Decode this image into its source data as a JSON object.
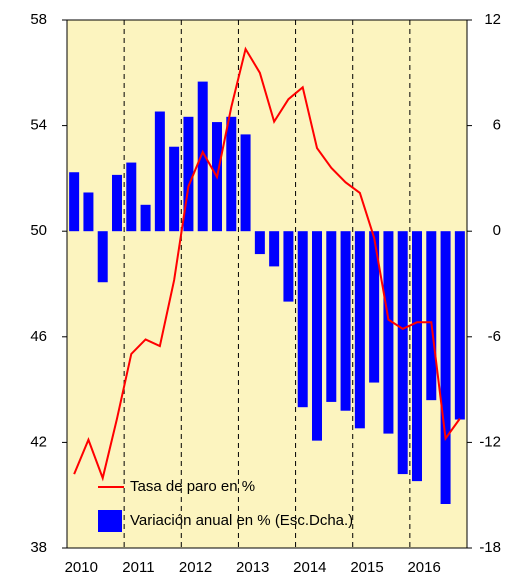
{
  "chart_data": {
    "type": "bar",
    "categories": [
      null,
      "2010",
      null,
      null,
      null,
      "2011",
      null,
      null,
      null,
      "2012",
      null,
      null,
      null,
      "2013",
      null,
      null,
      null,
      "2014",
      null,
      null,
      null,
      "2015",
      null,
      null,
      null,
      "2016",
      null,
      null
    ],
    "series": [
      {
        "name": "Tasa de paro en %",
        "type": "line",
        "color": "#ff0000",
        "values": [
          40.8,
          42.1,
          40.65,
          42.9,
          45.35,
          45.9,
          45.65,
          48.15,
          51.7,
          53.0,
          52.05,
          54.7,
          56.9,
          56.0,
          54.15,
          55.0,
          55.45,
          53.15,
          52.4,
          51.85,
          51.45,
          49.75,
          46.65,
          46.3,
          46.55,
          46.55,
          42.15,
          42.9
        ]
      },
      {
        "name": "Variación anual en % (Esc.Dcha.)",
        "type": "bar",
        "axis": "y2",
        "color": "#0000ff",
        "values": [
          3.35,
          2.2,
          -2.9,
          3.2,
          3.9,
          1.5,
          6.8,
          4.8,
          6.5,
          8.5,
          6.2,
          6.5,
          5.5,
          -1.3,
          -2.0,
          -4.0,
          -10.0,
          -11.9,
          -9.7,
          -10.2,
          -11.2,
          -8.6,
          -11.5,
          -13.8,
          -14.2,
          -9.6,
          -15.5,
          -10.7
        ]
      }
    ],
    "ylim": [
      38,
      58
    ],
    "yticks": [
      38,
      42,
      46,
      50,
      54,
      58
    ],
    "y2lim": [
      -18,
      12
    ],
    "y2ticks": [
      -18,
      -12,
      -6,
      0,
      6,
      12
    ],
    "background": "#fcf4bf",
    "legend": "lower left"
  }
}
